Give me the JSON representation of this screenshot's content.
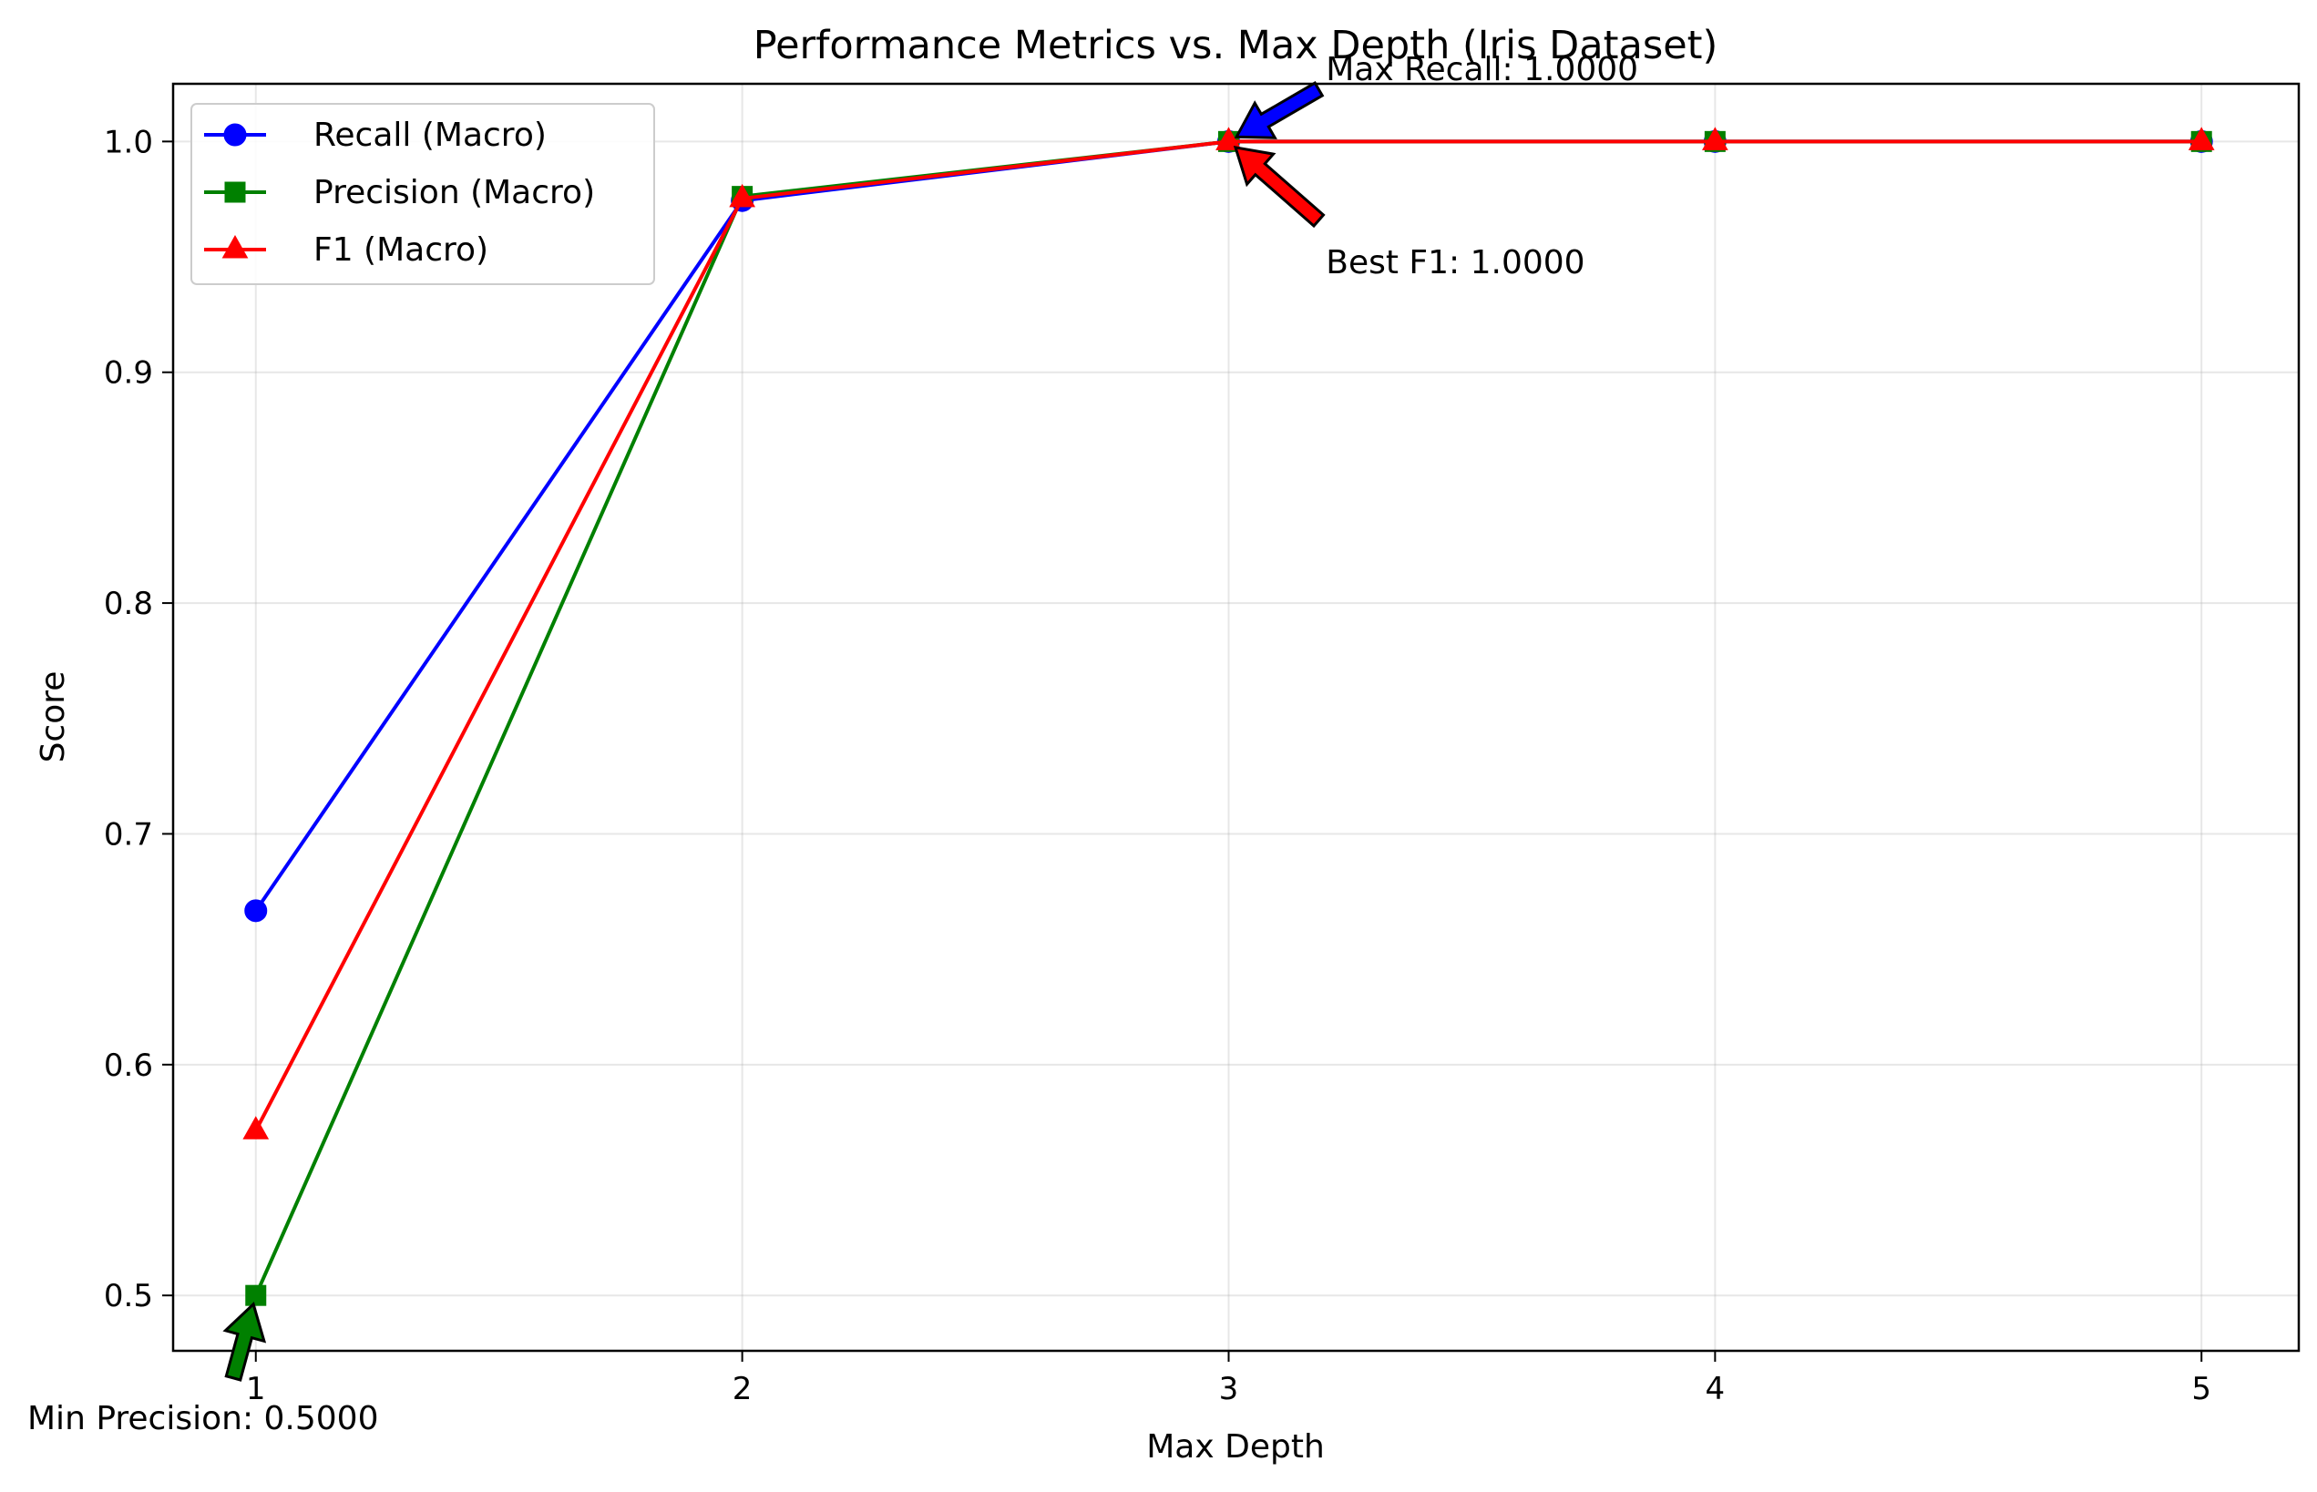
{
  "chart_data": {
    "type": "line",
    "title": "Performance Metrics vs. Max Depth (Iris Dataset)",
    "xlabel": "Max Depth",
    "ylabel": "Score",
    "x": [
      1,
      2,
      3,
      4,
      5
    ],
    "xlim": [
      0.83,
      5.2
    ],
    "ylim": [
      0.476,
      1.025
    ],
    "xticks": [
      1,
      2,
      3,
      4,
      5
    ],
    "xtick_labels": [
      "1",
      "2",
      "3",
      "4",
      "5"
    ],
    "yticks": [
      0.5,
      0.6,
      0.7,
      0.8,
      0.9,
      1.0
    ],
    "ytick_labels": [
      "0.5",
      "0.6",
      "0.7",
      "0.8",
      "0.9",
      "1.0"
    ],
    "grid": true,
    "legend_position": "top-left",
    "series": [
      {
        "name": "Recall (Macro)",
        "color": "#0000ff",
        "marker": "circle",
        "values": [
          0.6667,
          0.9744,
          1.0,
          1.0,
          1.0
        ]
      },
      {
        "name": "Precision (Macro)",
        "color": "#008000",
        "marker": "square",
        "values": [
          0.5,
          0.9762,
          1.0,
          1.0,
          1.0
        ]
      },
      {
        "name": "F1 (Macro)",
        "color": "#ff0000",
        "marker": "triangle",
        "values": [
          0.5714,
          0.9753,
          1.0,
          1.0,
          1.0
        ]
      }
    ],
    "annotations": [
      {
        "text": "Max Recall: 1.0000",
        "x": 3,
        "y": 1.0,
        "text_x": 3.2,
        "text_y": 1.025,
        "color": "#0000ff"
      },
      {
        "text": "Best F1: 1.0000",
        "x": 3,
        "y": 1.0,
        "text_x": 3.2,
        "text_y": 0.95,
        "color": "#ff0000"
      },
      {
        "text": "Min Precision: 0.5000",
        "x": 1,
        "y": 0.5,
        "text_x": 0.95,
        "text_y": 0.45,
        "color": "#008000"
      }
    ]
  }
}
